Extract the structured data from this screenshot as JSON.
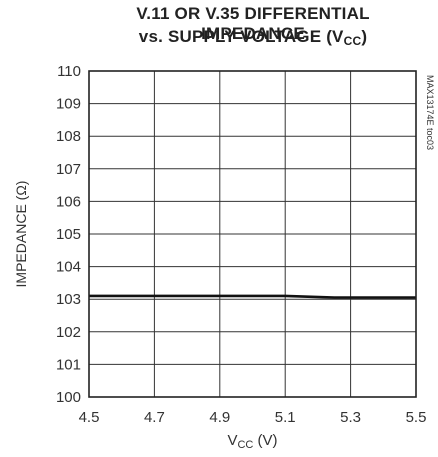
{
  "chart_data": {
    "type": "line",
    "title_line1": "V.11 OR V.35 DIFFERENTIAL IMPEDANCE",
    "title_line2_prefix": "vs. SUPPLY VOLTAGE (V",
    "title_line2_sub": "CC",
    "title_line2_suffix": ")",
    "xlabel_main": "V",
    "xlabel_sub": "CC",
    "xlabel_suffix": " (V)",
    "ylabel": "IMPEDANCE (Ω)",
    "watermark": "MAX13174E toc03",
    "xlim": [
      4.5,
      5.5
    ],
    "ylim": [
      100,
      110
    ],
    "x_ticks": [
      "4.5",
      "4.7",
      "4.9",
      "5.1",
      "5.3",
      "5.5"
    ],
    "y_ticks": [
      "100",
      "101",
      "102",
      "103",
      "104",
      "105",
      "106",
      "107",
      "108",
      "109",
      "110"
    ],
    "grid": true,
    "series": [
      {
        "x": [
          4.5,
          4.7,
          4.9,
          5.1,
          5.25,
          5.3,
          5.5
        ],
        "y": [
          103.1,
          103.1,
          103.1,
          103.1,
          103.05,
          103.05,
          103.05
        ]
      }
    ]
  }
}
